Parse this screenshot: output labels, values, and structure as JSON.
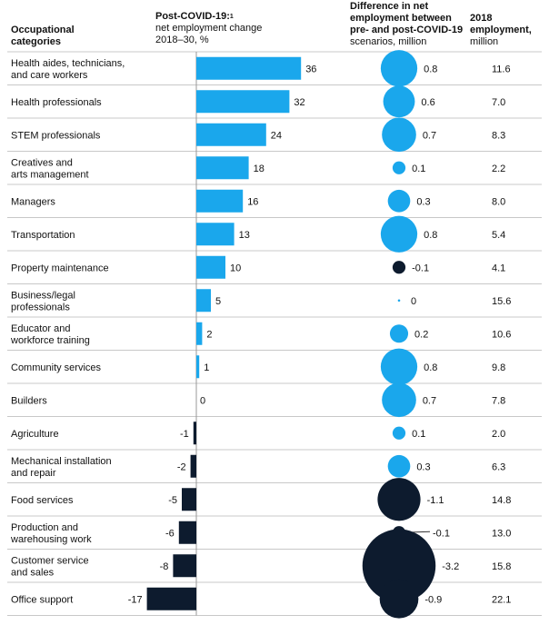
{
  "headers": {
    "categories": [
      "Occupational",
      "categories"
    ],
    "change": [
      "Post-COVID-19:",
      "net employment change",
      "2018–30, %"
    ],
    "change_note": "1",
    "difference": [
      "Difference in net",
      "employment between",
      "pre- and post-COVID-19",
      "scenarios, million"
    ],
    "employment": [
      "2018",
      "employment,",
      "million"
    ]
  },
  "colors": {
    "positive": "#1aa7ec",
    "negative": "#0d1b2e",
    "divider": "#c8c8c8",
    "axis": "#999999"
  },
  "chart_data": {
    "type": "bar",
    "orientation": "horizontal",
    "categories": [
      [
        "Health aides, technicians,",
        "and care workers"
      ],
      [
        "Health professionals"
      ],
      [
        "STEM professionals"
      ],
      [
        "Creatives and",
        "arts management"
      ],
      [
        "Managers"
      ],
      [
        "Transportation"
      ],
      [
        "Property maintenance"
      ],
      [
        "Business/legal",
        "professionals"
      ],
      [
        "Educator and",
        "workforce training"
      ],
      [
        "Community services"
      ],
      [
        "Builders"
      ],
      [
        "Agriculture"
      ],
      [
        "Mechanical installation",
        "and repair"
      ],
      [
        "Food services"
      ],
      [
        "Production and",
        "warehousing work"
      ],
      [
        "Customer service",
        "and sales"
      ],
      [
        "Office support"
      ]
    ],
    "net_change_pct": [
      36,
      32,
      24,
      18,
      16,
      13,
      10,
      5,
      2,
      1,
      0,
      -1,
      -2,
      -5,
      -6,
      -8,
      -17
    ],
    "difference_million": [
      "0.8",
      "0.6",
      "0.7",
      "0.1",
      "0.3",
      "0.8",
      "-0.1",
      "0",
      "0.2",
      "0.8",
      "0.7",
      "0.1",
      "0.3",
      "-1.1",
      "-0.1",
      "-3.2",
      "-0.9"
    ],
    "employment_2018_million": [
      "11.6",
      "7.0",
      "8.3",
      "2.2",
      "8.0",
      "5.4",
      "4.1",
      "15.6",
      "10.6",
      "9.8",
      "7.8",
      "2.0",
      "6.3",
      "14.8",
      "13.0",
      "15.8",
      "22.1"
    ]
  }
}
